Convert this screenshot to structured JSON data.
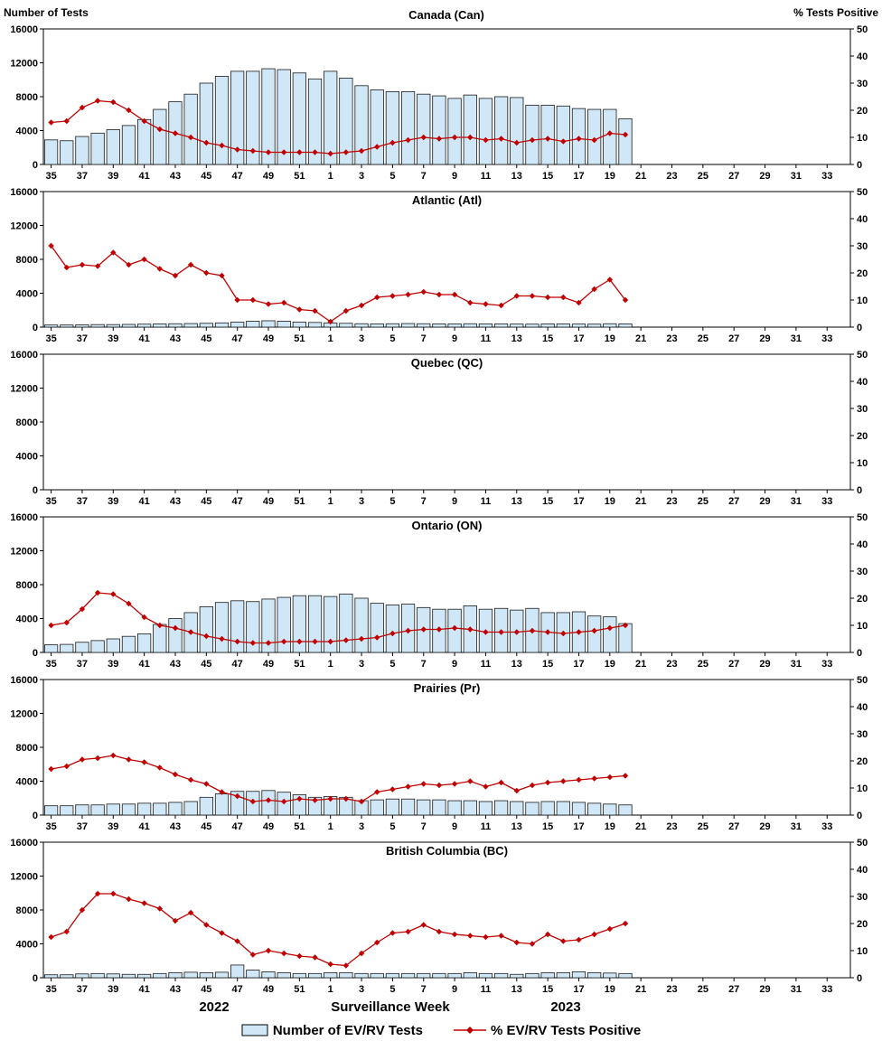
{
  "header": {
    "left_axis_title": "Number of Tests",
    "right_axis_title": "% Tests Positive"
  },
  "footer": {
    "year_left": "2022",
    "xlabel": "Surveillance Week",
    "year_right": "2023",
    "legend_bar_label": "Number of EV/RV Tests",
    "legend_line_label": "% EV/RV Tests Positive"
  },
  "colors": {
    "bar_fill": "#cfe7f6",
    "bar_stroke": "#1a1a1a",
    "line": "#c00000",
    "axis": "#000000"
  },
  "axes": {
    "week_slots": [
      35,
      36,
      37,
      38,
      39,
      40,
      41,
      42,
      43,
      44,
      45,
      46,
      47,
      48,
      49,
      50,
      51,
      52,
      1,
      2,
      3,
      4,
      5,
      6,
      7,
      8,
      9,
      10,
      11,
      12,
      13,
      14,
      15,
      16,
      17,
      18,
      19,
      20,
      21,
      22,
      23,
      24,
      25,
      26,
      27,
      28,
      29,
      30,
      31,
      32,
      33,
      34
    ],
    "x_tick_labels": [
      35,
      37,
      39,
      41,
      43,
      45,
      47,
      49,
      51,
      1,
      3,
      5,
      7,
      9,
      11,
      13,
      15,
      17,
      19,
      21,
      23,
      25,
      27,
      29,
      31,
      33
    ],
    "left_ylim": [
      0,
      16000
    ],
    "left_yticks": [
      0,
      4000,
      8000,
      12000,
      16000
    ],
    "right_ylim": [
      0,
      50
    ],
    "right_yticks": [
      0,
      10,
      20,
      30,
      40,
      50
    ]
  },
  "chart_data": [
    {
      "type": "bar+line",
      "id": "canada",
      "title": "Canada (Can)",
      "series": [
        {
          "name": "Number of EV/RV Tests",
          "axis": "left",
          "values": [
            2900,
            2800,
            3300,
            3700,
            4100,
            4600,
            5300,
            6500,
            7400,
            8300,
            9600,
            10400,
            11000,
            11000,
            11300,
            11200,
            10800,
            10100,
            11000,
            10200,
            9300,
            8800,
            8600,
            8600,
            8300,
            8100,
            7800,
            8200,
            7800,
            8000,
            7900,
            7000,
            7000,
            6900,
            6600,
            6500,
            6500,
            5400
          ]
        },
        {
          "name": "% EV/RV Tests Positive",
          "axis": "right",
          "values": [
            15.5,
            16,
            21,
            23.5,
            23,
            20,
            16,
            13,
            11.5,
            10,
            8,
            7,
            5.5,
            5,
            4.5,
            4.5,
            4.5,
            4.5,
            4,
            4.5,
            5,
            6.5,
            8,
            9,
            10,
            9.5,
            10,
            10,
            9,
            9.5,
            8,
            9,
            9.5,
            8.5,
            9.5,
            9,
            11.5,
            11
          ]
        }
      ]
    },
    {
      "type": "bar+line",
      "id": "atlantic",
      "title": "Atlantic (Atl)",
      "series": [
        {
          "name": "Number of EV/RV Tests",
          "axis": "left",
          "values": [
            250,
            250,
            280,
            300,
            300,
            320,
            350,
            380,
            400,
            420,
            450,
            500,
            600,
            700,
            750,
            700,
            600,
            550,
            500,
            450,
            400,
            380,
            400,
            420,
            400,
            380,
            380,
            400,
            380,
            380,
            360,
            350,
            380,
            380,
            360,
            350,
            400,
            380
          ]
        },
        {
          "name": "% EV/RV Tests Positive",
          "axis": "right",
          "values": [
            30,
            22,
            23,
            22.5,
            27.5,
            23,
            25,
            21.5,
            19,
            23,
            20,
            19,
            10,
            10,
            8.5,
            9,
            6.5,
            6,
            2,
            6,
            8,
            11,
            11.5,
            12,
            13,
            12,
            12,
            9,
            8.5,
            8,
            11.5,
            11.5,
            11,
            11,
            9,
            14,
            17.5,
            10
          ]
        }
      ]
    },
    {
      "type": "bar+line",
      "id": "quebec",
      "title": "Quebec (QC)",
      "series": [
        {
          "name": "Number of EV/RV Tests",
          "axis": "left",
          "values": []
        },
        {
          "name": "% EV/RV Tests Positive",
          "axis": "right",
          "values": []
        }
      ]
    },
    {
      "type": "bar+line",
      "id": "ontario",
      "title": "Ontario (ON)",
      "series": [
        {
          "name": "Number of EV/RV Tests",
          "axis": "left",
          "values": [
            900,
            950,
            1200,
            1400,
            1600,
            1900,
            2200,
            3300,
            4000,
            4700,
            5400,
            5900,
            6100,
            6000,
            6300,
            6500,
            6700,
            6700,
            6600,
            6900,
            6400,
            5800,
            5600,
            5700,
            5300,
            5100,
            5100,
            5500,
            5100,
            5200,
            5000,
            5200,
            4700,
            4700,
            4800,
            4300,
            4200,
            3400
          ]
        },
        {
          "name": "% EV/RV Tests Positive",
          "axis": "right",
          "values": [
            10,
            11,
            16,
            22,
            21.5,
            18,
            13,
            10,
            9,
            7.5,
            6,
            5,
            4,
            3.5,
            3.5,
            4,
            4,
            4,
            4,
            4.5,
            5,
            5.5,
            7,
            8,
            8.5,
            8.5,
            9,
            8.5,
            7.5,
            7.5,
            7.5,
            8,
            7.5,
            7,
            7.5,
            8,
            9,
            10
          ]
        }
      ]
    },
    {
      "type": "bar+line",
      "id": "prairies",
      "title": "Prairies (Pr)",
      "series": [
        {
          "name": "Number of EV/RV Tests",
          "axis": "left",
          "values": [
            1100,
            1100,
            1200,
            1200,
            1300,
            1300,
            1400,
            1400,
            1500,
            1600,
            2100,
            2500,
            2800,
            2800,
            2900,
            2700,
            2400,
            2100,
            2200,
            2100,
            1700,
            1800,
            1900,
            1900,
            1800,
            1800,
            1700,
            1700,
            1600,
            1700,
            1600,
            1500,
            1600,
            1600,
            1500,
            1400,
            1300,
            1200
          ]
        },
        {
          "name": "% EV/RV Tests Positive",
          "axis": "right",
          "values": [
            17,
            18,
            20.5,
            21,
            22,
            20.5,
            19.5,
            17.5,
            15,
            13,
            11.5,
            8.5,
            7,
            5,
            5.5,
            5,
            6,
            5.5,
            6,
            6,
            5,
            8.5,
            9.5,
            10.5,
            11.5,
            11,
            11.5,
            12.5,
            10.5,
            12,
            9,
            11,
            12,
            12.5,
            13,
            13.5,
            14,
            14.5
          ]
        }
      ]
    },
    {
      "type": "bar+line",
      "id": "bc",
      "title": "British Columbia (BC)",
      "series": [
        {
          "name": "Number of EV/RV Tests",
          "axis": "left",
          "values": [
            350,
            350,
            450,
            500,
            450,
            400,
            400,
            500,
            600,
            650,
            600,
            650,
            1500,
            900,
            700,
            600,
            500,
            500,
            600,
            600,
            500,
            500,
            500,
            500,
            500,
            500,
            500,
            600,
            500,
            500,
            400,
            500,
            600,
            600,
            700,
            600,
            550,
            500
          ]
        },
        {
          "name": "% EV/RV Tests Positive",
          "axis": "right",
          "values": [
            15,
            17,
            25,
            31,
            31,
            29,
            27.5,
            25.5,
            21,
            24,
            19.5,
            16.5,
            13.5,
            8.5,
            10,
            9,
            8,
            7.5,
            5,
            4.5,
            9,
            13,
            16.5,
            17,
            19.5,
            17,
            16,
            15.5,
            15,
            15.5,
            13,
            12.5,
            16,
            13.5,
            14,
            16,
            18,
            20
          ]
        }
      ]
    }
  ]
}
